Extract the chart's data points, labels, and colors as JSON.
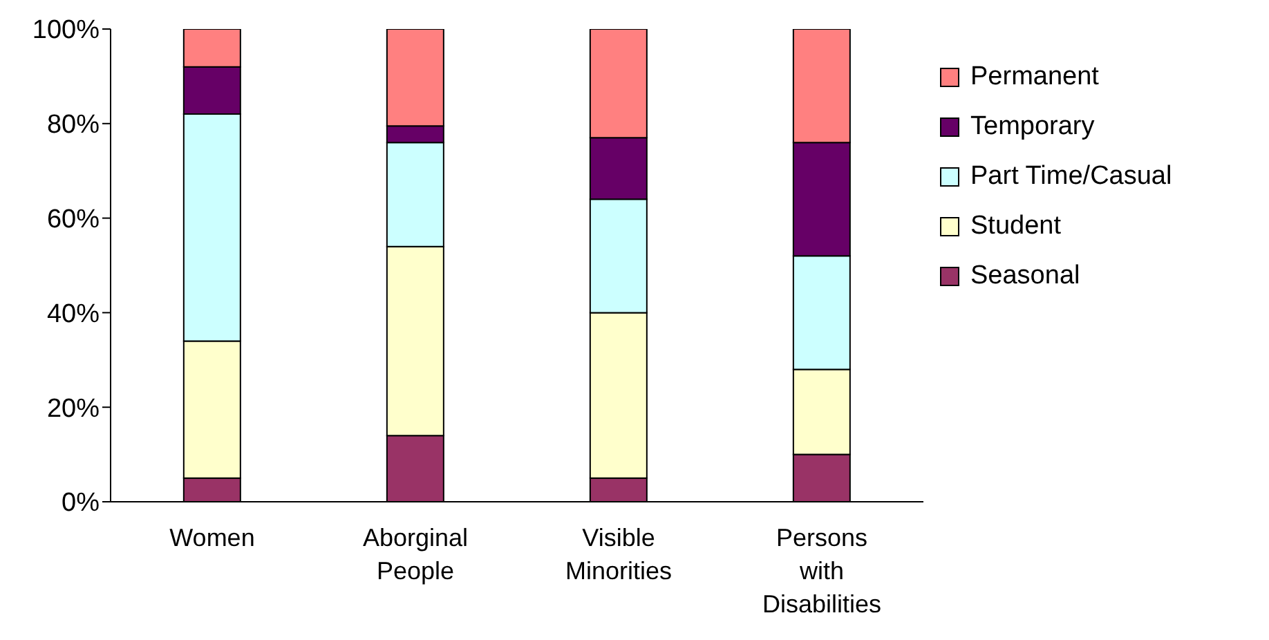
{
  "chart_data": {
    "type": "bar",
    "stacked": true,
    "categories": [
      "Women",
      "Aborginal People",
      "Visible Minorities",
      "Persons with Disabilities"
    ],
    "series": [
      {
        "name": "Seasonal",
        "color": "#993366",
        "values": [
          5,
          14,
          5,
          10
        ]
      },
      {
        "name": "Student",
        "color": "#ffffcc",
        "values": [
          29,
          40,
          35,
          18
        ]
      },
      {
        "name": "Part Time/Casual",
        "color": "#ccffff",
        "values": [
          48,
          22,
          24,
          24
        ]
      },
      {
        "name": "Temporary",
        "color": "#660066",
        "values": [
          10,
          3.5,
          13,
          24
        ]
      },
      {
        "name": "Permanent",
        "color": "#ff8080",
        "values": [
          8,
          20.5,
          23,
          24
        ]
      }
    ],
    "ylim": [
      0,
      100
    ],
    "yticks": [
      {
        "value": 0,
        "label": "0%"
      },
      {
        "value": 20,
        "label": "20%"
      },
      {
        "value": 40,
        "label": "40%"
      },
      {
        "value": 60,
        "label": "60%"
      },
      {
        "value": 80,
        "label": "80%"
      },
      {
        "value": 100,
        "label": "100%"
      }
    ],
    "legend": "right",
    "grid": false
  }
}
